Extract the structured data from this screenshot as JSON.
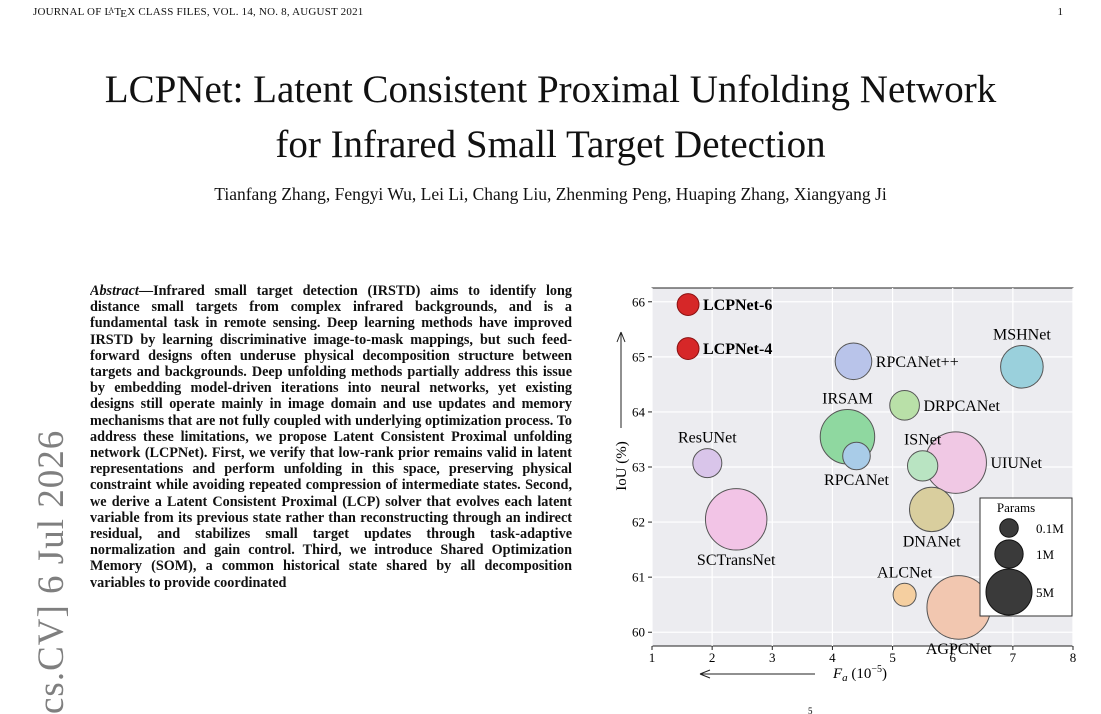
{
  "header": {
    "running_head": "JOURNAL OF LATEX CLASS FILES, VOL. 14, NO. 8, AUGUST 2021",
    "page_number": "1"
  },
  "paper": {
    "title_line1": "LCPNet: Latent Consistent Proximal Unfolding Network",
    "title_line2": "for Infrared Small Target Detection",
    "authors": "Tianfang Zhang, Fengyi Wu, Lei Li, Chang Liu, Zhenming Peng, Huaping Zhang, Xiangyang Ji",
    "arxiv_stamp": "cs.CV]  6 Jul 2026",
    "abstract_lead": "Abstract",
    "abstract_body": "—Infrared small target detection (IRSTD) aims to identify long distance small targets from complex infrared backgrounds, and is a fundamental task in remote sensing. Deep learning methods have improved IRSTD by learning discriminative image-to-mask mappings, but such feed-forward designs often underuse physical decomposition structure between targets and backgrounds. Deep unfolding methods partially address this issue by embedding model-driven iterations into neural networks, yet existing designs still operate mainly in image domain and use updates and memory mechanisms that are not fully coupled with underlying optimization process. To address these limitations, we propose Latent Consistent Proximal unfolding network (LCPNet). First, we verify that low-rank prior remains valid in latent representations and perform unfolding in this space, preserving physical constraint while avoiding repeated compression of intermediate states. Second, we derive a Latent Consistent Proximal (LCP) solver that evolves each latent variable from its previous state rather than reconstructing through an indirect residual, and stabilizes small target updates through task-adaptive normalization and gain control. Third, we introduce Shared Optimization Memory (SOM), a common historical state shared by all decomposition variables to provide coordinated"
  },
  "chart_data": {
    "type": "scatter",
    "xlabel": "Fa (10^-5)",
    "xlabel_main": "F",
    "xlabel_sub": "a",
    "xlabel_unit": "(10",
    "xlabel_exp": "−5",
    "xlabel_close": ")",
    "ylabel": "IoU (%)",
    "xlim": [
      1,
      8
    ],
    "ylim": [
      59.75,
      66.25
    ],
    "x_ticks": [
      1,
      2,
      3,
      4,
      5,
      6,
      7,
      8
    ],
    "y_ticks": [
      60,
      61,
      62,
      63,
      64,
      65,
      66
    ],
    "grid": true,
    "stray_text": "5",
    "points": [
      {
        "name": "LCPNet-6",
        "x": 1.6,
        "y": 65.95,
        "params_m": 0.3,
        "color": "#d62728",
        "bold": true,
        "label_pos": "right"
      },
      {
        "name": "LCPNet-4",
        "x": 1.6,
        "y": 65.15,
        "params_m": 0.3,
        "color": "#d62728",
        "bold": true,
        "label_pos": "right"
      },
      {
        "name": "MSHNet",
        "x": 7.15,
        "y": 64.82,
        "params_m": 4.0,
        "color": "#9ad0dc",
        "bold": false,
        "label_pos": "above"
      },
      {
        "name": "RPCANet++",
        "x": 4.35,
        "y": 64.92,
        "params_m": 2.5,
        "color": "#b9c4ea",
        "bold": false,
        "label_pos": "right"
      },
      {
        "name": "DRPCANet",
        "x": 5.2,
        "y": 64.12,
        "params_m": 1.2,
        "color": "#b9e0a8",
        "bold": false,
        "label_pos": "right"
      },
      {
        "name": "IRSAM",
        "x": 4.25,
        "y": 63.55,
        "params_m": 8.0,
        "color": "#8fd8a0",
        "bold": false,
        "label_pos": "above"
      },
      {
        "name": "RPCANet",
        "x": 4.4,
        "y": 63.2,
        "params_m": 0.9,
        "color": "#a9cce8",
        "bold": false,
        "label_pos": "below"
      },
      {
        "name": "ResUNet",
        "x": 1.92,
        "y": 63.07,
        "params_m": 1.1,
        "color": "#d9c5ea",
        "bold": false,
        "label_pos": "above"
      },
      {
        "name": "ISNet",
        "x": 5.5,
        "y": 63.02,
        "params_m": 1.3,
        "color": "#b9e4c2",
        "bold": false,
        "label_pos": "above"
      },
      {
        "name": "UIUNet",
        "x": 6.05,
        "y": 63.08,
        "params_m": 11.0,
        "color": "#f0c8e4",
        "bold": false,
        "label_pos": "right"
      },
      {
        "name": "DNANet",
        "x": 5.65,
        "y": 62.23,
        "params_m": 4.5,
        "color": "#d9ce9e",
        "bold": false,
        "label_pos": "below"
      },
      {
        "name": "SCTransNet",
        "x": 2.4,
        "y": 62.05,
        "params_m": 11.0,
        "color": "#f2c4e6",
        "bold": false,
        "label_pos": "below"
      },
      {
        "name": "ALCNet",
        "x": 5.2,
        "y": 60.68,
        "params_m": 0.4,
        "color": "#f5cfa0",
        "bold": false,
        "label_pos": "above"
      },
      {
        "name": "AGPCNet",
        "x": 6.1,
        "y": 60.45,
        "params_m": 12.0,
        "color": "#f2c7b0",
        "bold": false,
        "label_pos": "below"
      }
    ],
    "legend": {
      "title": "Params",
      "placement": "bottom-right",
      "entries": [
        {
          "label": "0.1M",
          "params_m": 0.1
        },
        {
          "label": "1M",
          "params_m": 1.0
        },
        {
          "label": "5M",
          "params_m": 5.0
        }
      ]
    }
  }
}
